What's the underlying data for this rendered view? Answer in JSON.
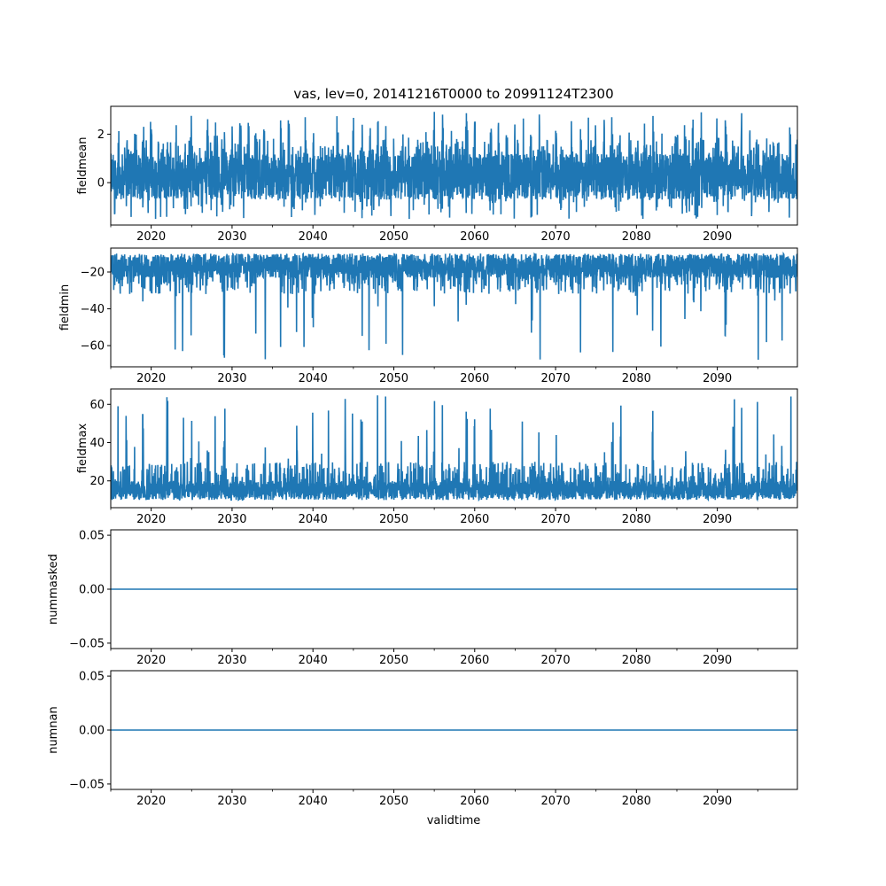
{
  "figure": {
    "title": "vas, lev=0, 20141216T0000 to 20991124T2300",
    "shared_xlabel": "validtime",
    "line_color": "#1f77b4"
  },
  "chart_data": [
    {
      "type": "line",
      "ylabel": "fieldmean",
      "xlim": [
        2015.0,
        2099.9
      ],
      "ylim": [
        -1.75,
        3.15
      ],
      "x_ticks": [
        2020,
        2030,
        2040,
        2050,
        2060,
        2070,
        2080,
        2090
      ],
      "x_tick_labels": [
        "2020",
        "2030",
        "2040",
        "2050",
        "2060",
        "2070",
        "2080",
        "2090"
      ],
      "y_ticks": [
        0,
        2
      ],
      "y_tick_labels": [
        "0",
        "2"
      ],
      "series": [
        {
          "color": "#1f77b4",
          "pattern": "dense-noise",
          "base_low": -0.7,
          "base_high": 1.2,
          "peak_max": 2.95,
          "trough_min": -1.5
        }
      ]
    },
    {
      "type": "line",
      "ylabel": "fieldmin",
      "xlim": [
        2015.0,
        2099.9
      ],
      "ylim": [
        -71.5,
        -7.0
      ],
      "x_ticks": [
        2020,
        2030,
        2040,
        2050,
        2060,
        2070,
        2080,
        2090
      ],
      "x_tick_labels": [
        "2020",
        "2030",
        "2040",
        "2050",
        "2060",
        "2070",
        "2080",
        "2090"
      ],
      "y_ticks": [
        -60,
        -40,
        -20
      ],
      "y_tick_labels": [
        "−60",
        "−40",
        "−20"
      ],
      "series": [
        {
          "color": "#1f77b4",
          "pattern": "dense-noise-with-spikes-down",
          "base_low": -32,
          "base_high": -10,
          "spike_min": -68
        }
      ]
    },
    {
      "type": "line",
      "ylabel": "fieldmax",
      "xlim": [
        2015.0,
        2099.9
      ],
      "ylim": [
        6.0,
        68.0
      ],
      "x_ticks": [
        2020,
        2030,
        2040,
        2050,
        2060,
        2070,
        2080,
        2090
      ],
      "x_tick_labels": [
        "2020",
        "2030",
        "2040",
        "2050",
        "2060",
        "2070",
        "2080",
        "2090"
      ],
      "y_ticks": [
        20,
        40,
        60
      ],
      "y_tick_labels": [
        "20",
        "40",
        "60"
      ],
      "series": [
        {
          "color": "#1f77b4",
          "pattern": "dense-noise-with-spikes-up",
          "base_low": 10,
          "base_high": 30,
          "spike_max": 65
        }
      ]
    },
    {
      "type": "line",
      "ylabel": "nummasked",
      "xlim": [
        2015.0,
        2099.9
      ],
      "ylim": [
        -0.055,
        0.055
      ],
      "x_ticks": [
        2020,
        2030,
        2040,
        2050,
        2060,
        2070,
        2080,
        2090
      ],
      "x_tick_labels": [
        "2020",
        "2030",
        "2040",
        "2050",
        "2060",
        "2070",
        "2080",
        "2090"
      ],
      "y_ticks": [
        -0.05,
        0.0,
        0.05
      ],
      "y_tick_labels": [
        "−0.05",
        "0.00",
        "0.05"
      ],
      "series": [
        {
          "color": "#1f77b4",
          "pattern": "constant",
          "value": 0.0
        }
      ]
    },
    {
      "type": "line",
      "ylabel": "numnan",
      "xlim": [
        2015.0,
        2099.9
      ],
      "ylim": [
        -0.055,
        0.055
      ],
      "x_ticks": [
        2020,
        2030,
        2040,
        2050,
        2060,
        2070,
        2080,
        2090
      ],
      "x_tick_labels": [
        "2020",
        "2030",
        "2040",
        "2050",
        "2060",
        "2070",
        "2080",
        "2090"
      ],
      "y_ticks": [
        -0.05,
        0.0,
        0.05
      ],
      "y_tick_labels": [
        "−0.05",
        "0.00",
        "0.05"
      ],
      "series": [
        {
          "color": "#1f77b4",
          "pattern": "constant",
          "value": 0.0
        }
      ]
    }
  ]
}
